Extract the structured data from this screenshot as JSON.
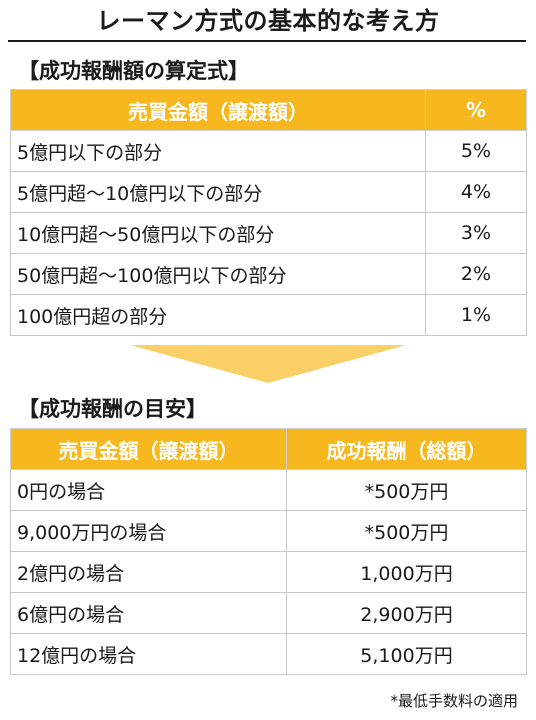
{
  "title": "レーマン方式の基本的な考え方",
  "section1": {
    "heading": "【成功報酬額の算定式】",
    "headers": [
      "売買金額（譲渡額）",
      "%"
    ],
    "rows": [
      {
        "range": "5億円以下の部分",
        "pct": "5%"
      },
      {
        "range": "5億円超～10億円以下の部分",
        "pct": "4%"
      },
      {
        "range": "10億円超～50億円以下の部分",
        "pct": "3%"
      },
      {
        "range": "50億円超～100億円以下の部分",
        "pct": "2%"
      },
      {
        "range": "100億円超の部分",
        "pct": "1%"
      }
    ]
  },
  "section2": {
    "heading": "【成功報酬の目安】",
    "headers": [
      "売買金額（譲渡額）",
      "成功報酬（総額）"
    ],
    "rows": [
      {
        "case": "0円の場合",
        "fee": "*500万円"
      },
      {
        "case": "9,000万円の場合",
        "fee": "*500万円"
      },
      {
        "case": "2億円の場合",
        "fee": "1,000万円"
      },
      {
        "case": "6億円の場合",
        "fee": "2,900万円"
      },
      {
        "case": "12億円の場合",
        "fee": "5,100万円"
      }
    ]
  },
  "footnote": "*最低手数料の適用",
  "colors": {
    "header_bg": "#F6B81E",
    "arrow": "#F9CF66"
  }
}
